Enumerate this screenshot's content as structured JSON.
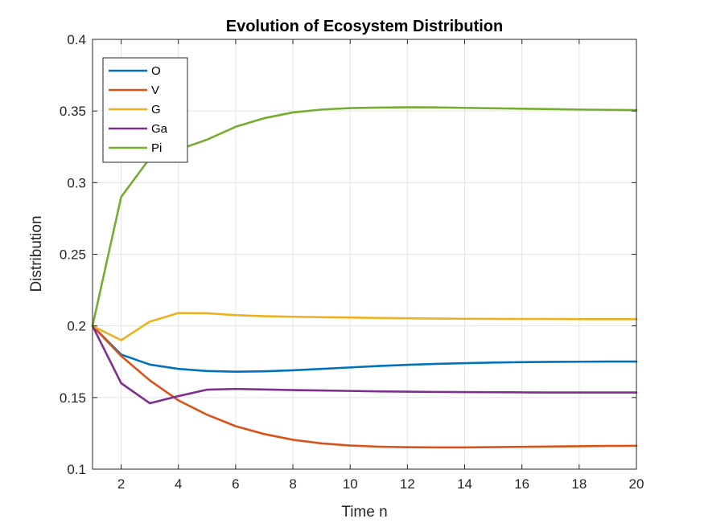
{
  "chart_data": {
    "type": "line",
    "title": "Evolution of Ecosystem Distribution",
    "xlabel": "Time n",
    "ylabel": "Distribution",
    "xlim": [
      1,
      20
    ],
    "ylim": [
      0.1,
      0.4
    ],
    "xticks": [
      2,
      4,
      6,
      8,
      10,
      12,
      14,
      16,
      18,
      20
    ],
    "yticks": [
      0.1,
      0.15,
      0.2,
      0.25,
      0.3,
      0.35,
      0.4
    ],
    "xtick_labels": [
      "2",
      "4",
      "6",
      "8",
      "10",
      "12",
      "14",
      "16",
      "18",
      "20"
    ],
    "ytick_labels": [
      "0.1",
      "0.15",
      "0.2",
      "0.25",
      "0.3",
      "0.35",
      "0.4"
    ],
    "grid": true,
    "legend_position": "top-left",
    "x": [
      1,
      2,
      3,
      4,
      5,
      6,
      7,
      8,
      9,
      10,
      11,
      12,
      13,
      14,
      15,
      16,
      17,
      18,
      19,
      20
    ],
    "series": [
      {
        "name": "O",
        "color": "#0072BD",
        "values": [
          0.2,
          0.18,
          0.173,
          0.17,
          0.1685,
          0.168,
          0.1683,
          0.169,
          0.17,
          0.171,
          0.172,
          0.1728,
          0.1735,
          0.174,
          0.1744,
          0.1747,
          0.1749,
          0.175,
          0.1751,
          0.1751
        ]
      },
      {
        "name": "V",
        "color": "#D95319",
        "values": [
          0.2,
          0.179,
          0.162,
          0.148,
          0.138,
          0.13,
          0.1245,
          0.1205,
          0.118,
          0.1165,
          0.1157,
          0.1153,
          0.1152,
          0.1152,
          0.1154,
          0.1156,
          0.1158,
          0.116,
          0.1162,
          0.1163
        ]
      },
      {
        "name": "G",
        "color": "#EDB120",
        "values": [
          0.2,
          0.19,
          0.203,
          0.209,
          0.2088,
          0.2075,
          0.2068,
          0.2064,
          0.2061,
          0.2058,
          0.2055,
          0.2053,
          0.2051,
          0.205,
          0.2049,
          0.2048,
          0.2048,
          0.2047,
          0.2047,
          0.2047
        ]
      },
      {
        "name": "Ga",
        "color": "#7E2F8E",
        "values": [
          0.2,
          0.16,
          0.146,
          0.151,
          0.1555,
          0.156,
          0.1556,
          0.1552,
          0.1549,
          0.1546,
          0.1543,
          0.1541,
          0.1539,
          0.1538,
          0.1537,
          0.1536,
          0.1535,
          0.1535,
          0.1535,
          0.1535
        ]
      },
      {
        "name": "Pi",
        "color": "#77AC30",
        "values": [
          0.2,
          0.29,
          0.317,
          0.323,
          0.33,
          0.339,
          0.345,
          0.349,
          0.351,
          0.352,
          0.3524,
          0.3526,
          0.3525,
          0.3522,
          0.3519,
          0.3516,
          0.3513,
          0.351,
          0.3508,
          0.3506
        ]
      }
    ]
  }
}
